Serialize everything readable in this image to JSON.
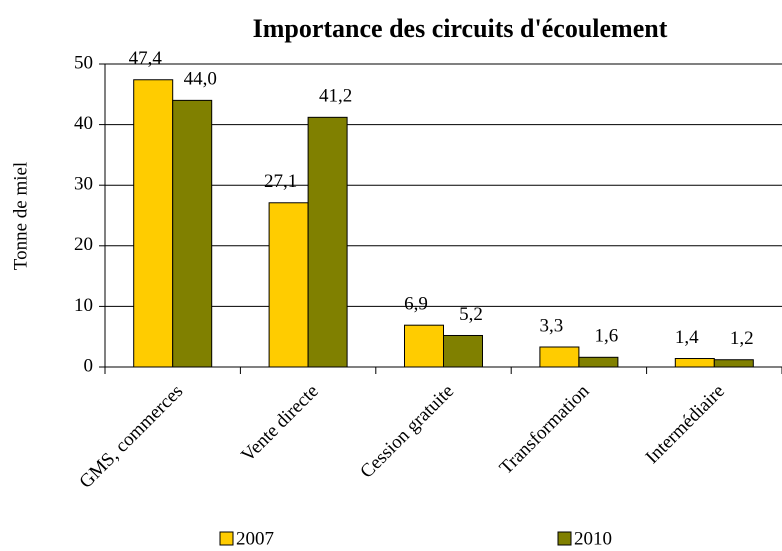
{
  "chart_data": {
    "type": "bar",
    "title": "Importance des circuits d'écoulement",
    "y_label": "Tonne de miel",
    "categories": [
      "GMS, commerces",
      "Vente directe",
      "Cession gratuite",
      "Transformation",
      "Intermédiaire"
    ],
    "series": [
      {
        "name": "2007",
        "color": "#ffcc00",
        "values": [
          47.4,
          27.1,
          6.9,
          3.3,
          1.4
        ],
        "value_labels": [
          "47,4",
          "27,1",
          "6,9",
          "3,3",
          "1,4"
        ]
      },
      {
        "name": "2010",
        "color": "#808000",
        "values": [
          44.0,
          41.2,
          5.2,
          1.6,
          1.2
        ],
        "value_labels": [
          "44,0",
          "41,2",
          "5,2",
          "1,6",
          "1,2"
        ]
      }
    ],
    "ylim": [
      0,
      50
    ],
    "yticks": [
      0,
      10,
      20,
      30,
      40,
      50
    ],
    "grid": true,
    "legend": "bottom"
  }
}
